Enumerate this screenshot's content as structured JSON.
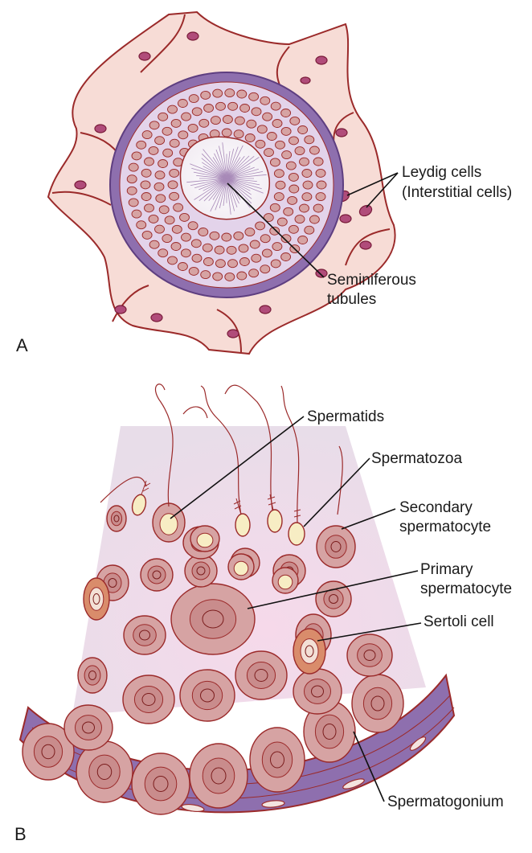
{
  "panels": {
    "a": {
      "letter": "A",
      "labels": {
        "leydig_line1": "Leydig cells",
        "leydig_line2": "(Interstitial cells)",
        "tubules_line1": "Seminiferous",
        "tubules_line2": "tubules"
      }
    },
    "b": {
      "letter": "B",
      "labels": {
        "spermatids": "Spermatids",
        "spermatozoa": "Spermatozoa",
        "secondary_line1": "Secondary",
        "secondary_line2": "spermatocyte",
        "primary_line1": "Primary",
        "primary_line2": "spermatocyte",
        "sertoli": "Sertoli cell",
        "spermatogonium": "Spermatogonium"
      }
    }
  },
  "colors": {
    "interstitium": "#f7dcd6",
    "outline": "#9b2a2a",
    "tubule_wall": "#8e6fae",
    "tubule_fill": "#e3d3ea",
    "cell_fill": "#d6a3a3",
    "cell_nucleus": "#c07c7c",
    "sertoli": "#d98c6b",
    "spermatid_head": "#f7edc4",
    "section_bg": "#e8dcea",
    "section_center": "#f3dceb",
    "leydig": "#b04c7a"
  }
}
